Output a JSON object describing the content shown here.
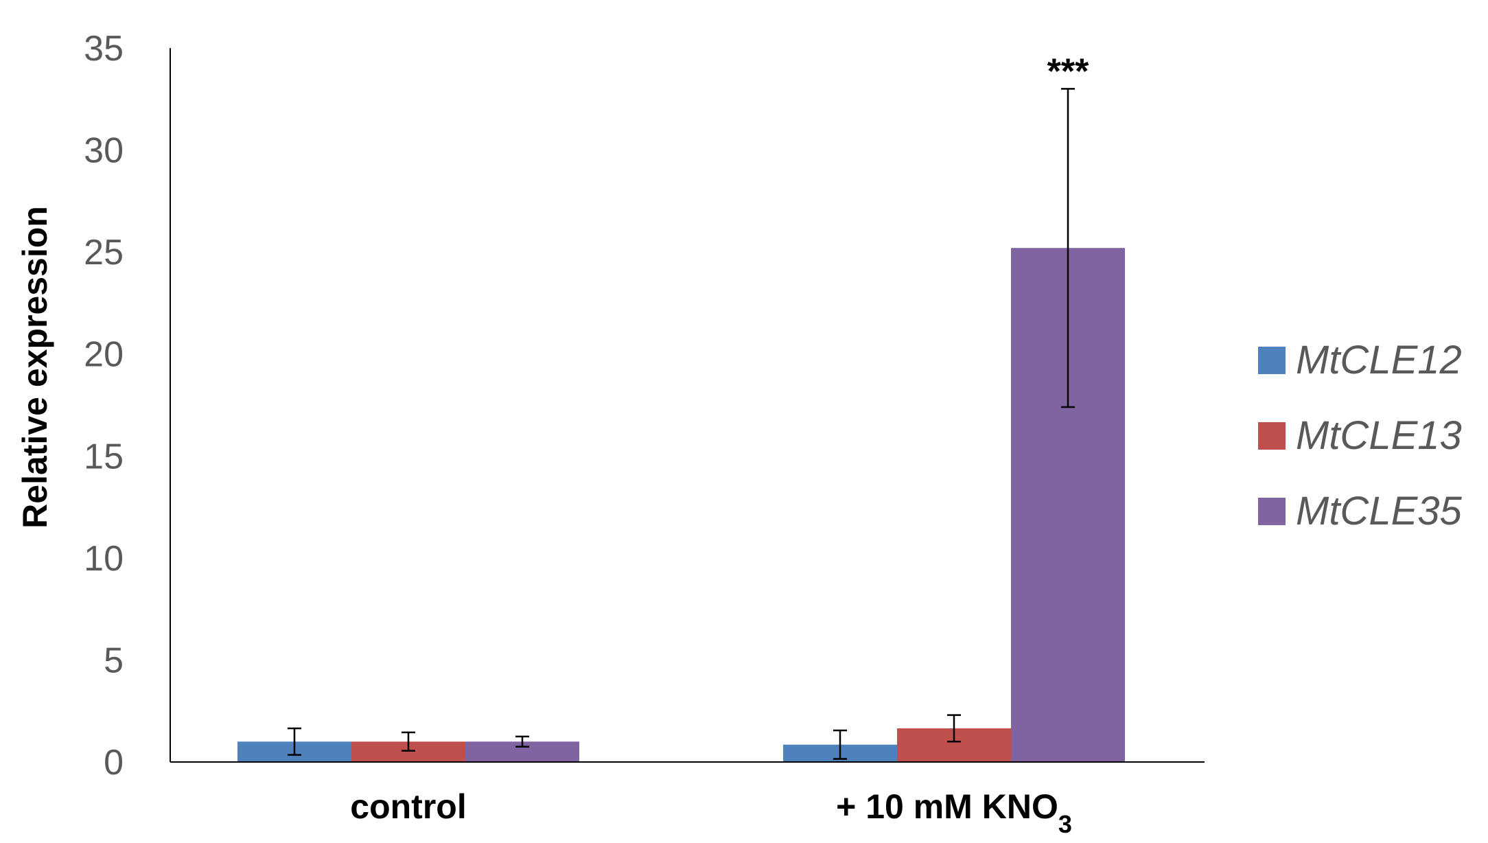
{
  "chart_data": {
    "type": "bar",
    "title": "",
    "xlabel": "",
    "ylabel": "Relative expression",
    "ylim": [
      0,
      35
    ],
    "yticks": [
      0,
      5,
      10,
      15,
      20,
      25,
      30,
      35
    ],
    "grid": false,
    "legend_position": "right",
    "categories": [
      {
        "main": "control",
        "sub": ""
      },
      {
        "main": "+ 10 mM KNO",
        "sub": "3"
      }
    ],
    "series": [
      {
        "name": "MtCLE12",
        "color": "#4F81BD",
        "values": [
          1.0,
          0.85
        ],
        "errors": [
          0.65,
          0.7
        ]
      },
      {
        "name": "MtCLE13",
        "color": "#C0504D",
        "values": [
          1.0,
          1.65
        ],
        "errors": [
          0.45,
          0.65
        ]
      },
      {
        "name": "MtCLE35",
        "color": "#8064A2",
        "values": [
          1.0,
          25.2
        ],
        "errors": [
          0.25,
          7.8
        ]
      }
    ],
    "annotations": [
      {
        "text": "***",
        "category_index": 1,
        "series_index": 2
      }
    ]
  }
}
